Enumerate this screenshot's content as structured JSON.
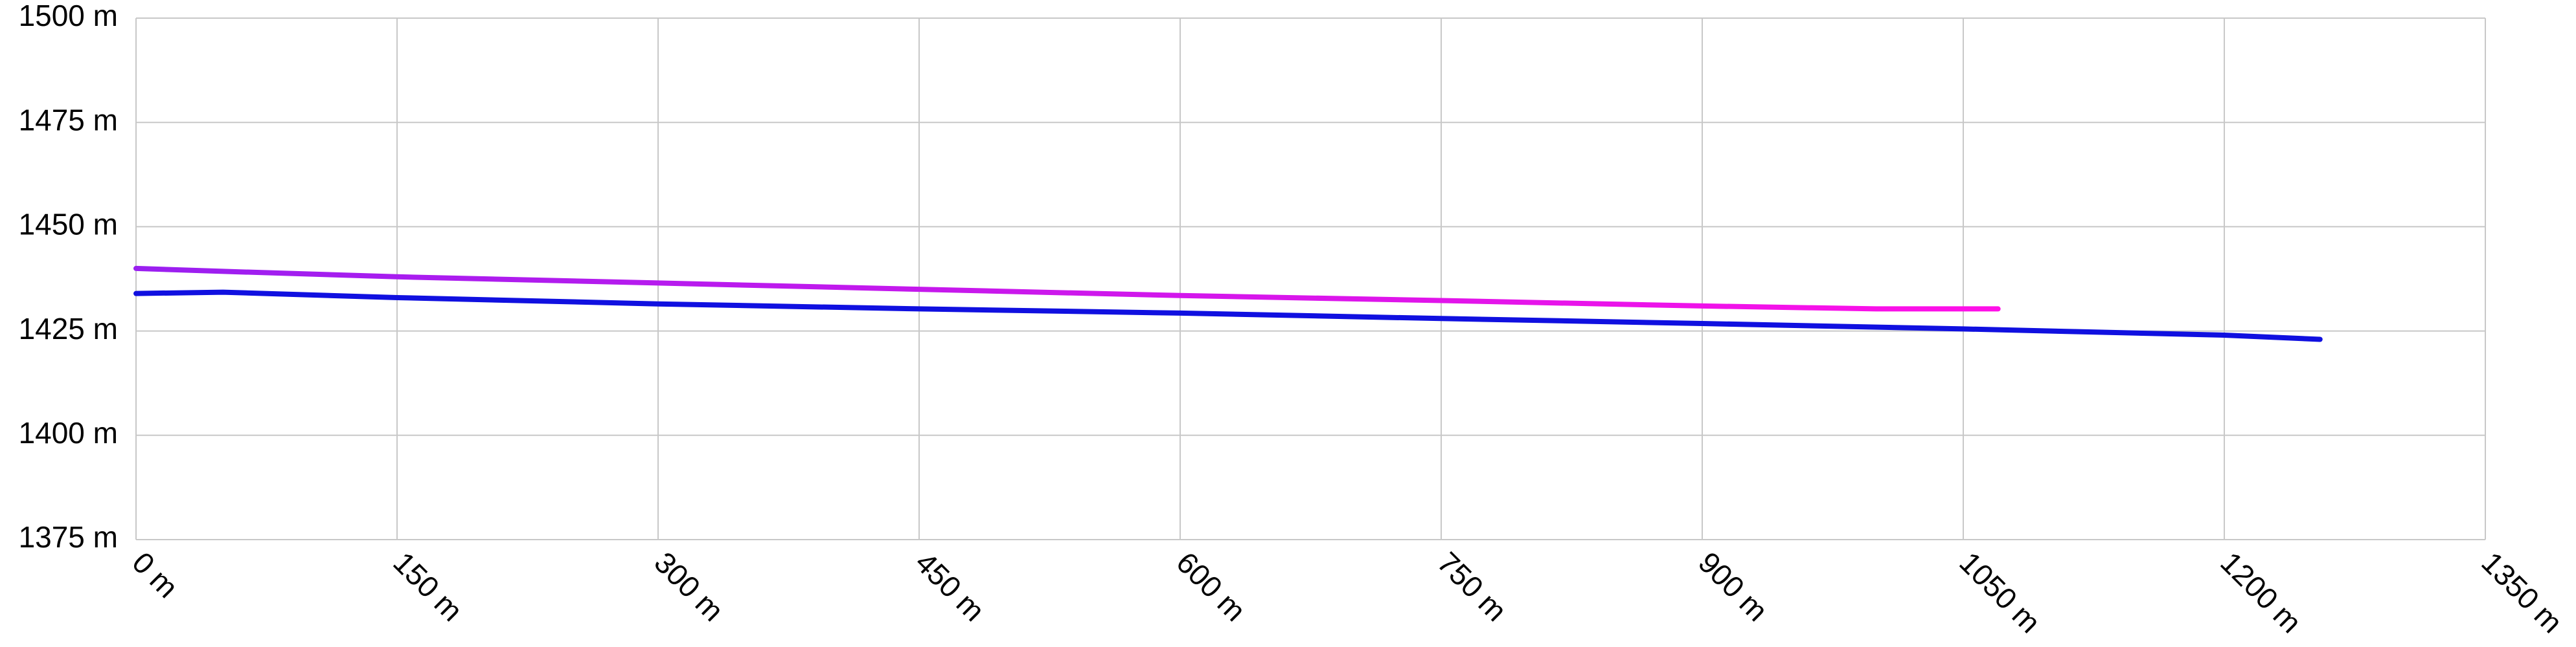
{
  "chart_data": {
    "type": "line",
    "x": null,
    "series": [
      {
        "name": null,
        "colors": [
          "#9a1ff0",
          "#ff10e8"
        ],
        "x": [
          0,
          50,
          150,
          300,
          450,
          600,
          750,
          900,
          1000,
          1070
        ],
        "values": [
          1440,
          1439.3,
          1438,
          1436.5,
          1435,
          1433.5,
          1432.3,
          1431,
          1430.3,
          1430.3
        ]
      },
      {
        "name": null,
        "color": "#1010e0",
        "x": [
          0,
          50,
          150,
          300,
          450,
          600,
          750,
          900,
          1050,
          1200,
          1255
        ],
        "values": [
          1434,
          1434.3,
          1433,
          1431.5,
          1430.3,
          1429.3,
          1428,
          1426.8,
          1425.5,
          1424,
          1423
        ]
      }
    ],
    "xlim": [
      0,
      1350
    ],
    "xticks": [
      {
        "value": 0,
        "label": "0 m"
      },
      {
        "value": 150,
        "label": "150 m"
      },
      {
        "value": 300,
        "label": "300 m"
      },
      {
        "value": 450,
        "label": "450 m"
      },
      {
        "value": 600,
        "label": "600 m"
      },
      {
        "value": 750,
        "label": "750 m"
      },
      {
        "value": 900,
        "label": "900 m"
      },
      {
        "value": 1050,
        "label": "1050 m"
      },
      {
        "value": 1200,
        "label": "1200 m"
      },
      {
        "value": 1350,
        "label": "1350 m"
      }
    ],
    "ylim": [
      1375,
      1500
    ],
    "yticks": [
      {
        "value": 1375,
        "label": "1375 m"
      },
      {
        "value": 1400,
        "label": "1400 m"
      },
      {
        "value": 1425,
        "label": "1425 m"
      },
      {
        "value": 1450,
        "label": "1450 m"
      },
      {
        "value": 1475,
        "label": "1475 m"
      },
      {
        "value": 1500,
        "label": "1500 m"
      }
    ],
    "grid": true
  }
}
